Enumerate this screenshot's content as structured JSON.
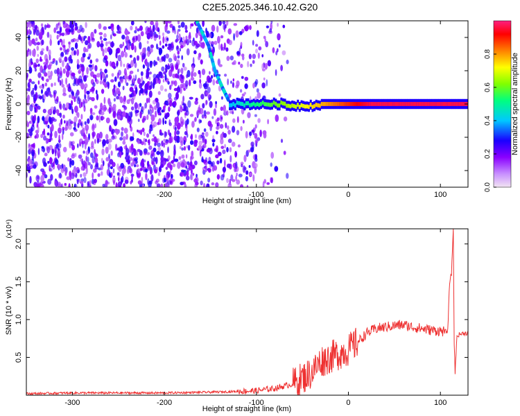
{
  "title": "C2E5.2025.346.10.42.G20",
  "chart_data": [
    {
      "type": "heatmap",
      "xlabel": "Height of straight line (km)",
      "ylabel": "Frequency (Hz)",
      "xlim": [
        -350,
        130
      ],
      "ylim": [
        -50,
        50
      ],
      "x_ticks": [
        -300,
        -200,
        -100,
        0,
        100
      ],
      "y_ticks": [
        -40,
        -20,
        0,
        20,
        40
      ],
      "colorbar": {
        "label": "Normalized spectral amplitude",
        "range": [
          0,
          1
        ],
        "ticks": [
          "0.0",
          "0.2",
          "0.4",
          "0.6",
          "0.8"
        ],
        "colors": [
          "#f2e4f2",
          "#8a00ff",
          "#1a00ff",
          "#00c8ff",
          "#00ff80",
          "#80ff00",
          "#ffff00",
          "#ff8000",
          "#ff0000",
          "#ff2080"
        ]
      },
      "features": {
        "noise_region_x": [
          -350,
          -100
        ],
        "diagonal_trace": [
          [
            -165,
            50
          ],
          [
            -152,
            35
          ],
          [
            -145,
            20
          ],
          [
            -137,
            10
          ],
          [
            -130,
            2
          ]
        ],
        "tone_line": {
          "x": [
            -130,
            130
          ],
          "y": 0,
          "peak_amplitude": 1.0
        }
      }
    },
    {
      "type": "line",
      "xlabel": "Height of straight line (km)",
      "ylabel": "SNR (10 * v/v)",
      "y_multiplier": "(x10⁴)",
      "xlim": [
        -350,
        130
      ],
      "ylim": [
        0,
        2.2
      ],
      "x_ticks": [
        -300,
        -200,
        -100,
        0,
        100
      ],
      "y_ticks": [
        0.5,
        1.0,
        1.5,
        2.0
      ],
      "y_tick_labels": [
        "0.5",
        "1.0",
        "1.5",
        "2.0"
      ],
      "color": "#ee3030",
      "series": [
        {
          "x": [
            -350,
            -300,
            -250,
            -200,
            -150,
            -120,
            -100,
            -80,
            -60,
            -40,
            -30,
            -20,
            -10,
            0,
            10,
            20,
            30,
            40,
            50,
            60,
            70,
            80,
            90,
            100,
            105,
            108,
            110,
            112,
            114,
            115,
            116,
            118,
            120,
            125,
            130
          ],
          "y": [
            0.02,
            0.03,
            0.03,
            0.03,
            0.04,
            0.05,
            0.06,
            0.09,
            0.15,
            0.3,
            0.45,
            0.5,
            0.55,
            0.6,
            0.7,
            0.82,
            0.88,
            0.9,
            0.92,
            0.93,
            0.9,
            0.88,
            0.86,
            0.85,
            0.84,
            0.85,
            1.5,
            1.6,
            2.2,
            0.7,
            0.3,
            0.78,
            0.8,
            0.82,
            0.82
          ]
        }
      ]
    }
  ]
}
